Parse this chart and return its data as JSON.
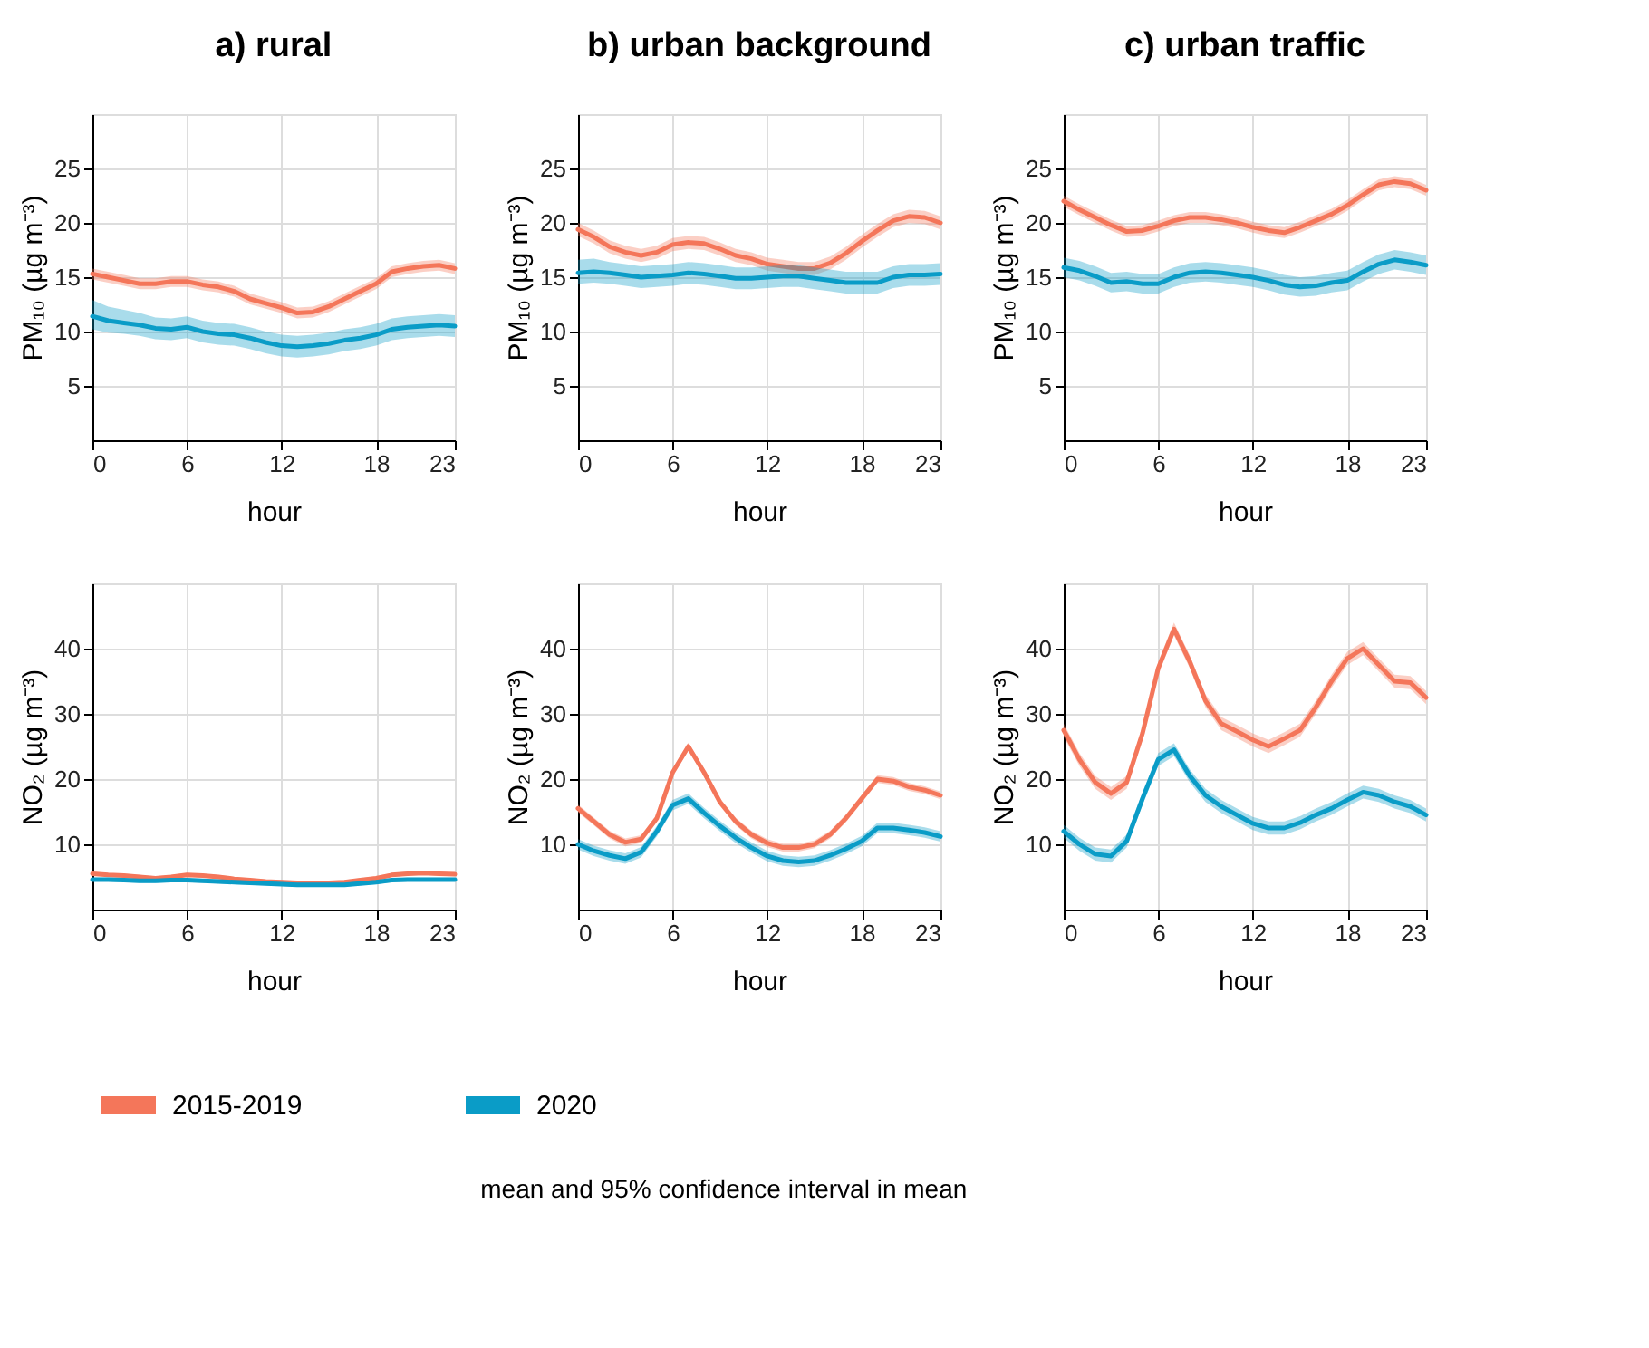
{
  "chart_data": [
    {
      "type": "line",
      "title": "a) rural",
      "legend": "bottom",
      "xlabel": "hour",
      "ylabel": "PM₁₀ (µg m⁻³)",
      "x": [
        0,
        1,
        2,
        3,
        4,
        5,
        6,
        7,
        8,
        9,
        10,
        11,
        12,
        13,
        14,
        15,
        16,
        17,
        18,
        19,
        20,
        21,
        22,
        23
      ],
      "xlim": [
        0,
        23
      ],
      "xticks": [
        0,
        6,
        12,
        18,
        23
      ],
      "ylim": [
        0,
        30
      ],
      "yticks": [
        5,
        10,
        15,
        20,
        25
      ],
      "grid": true,
      "series": [
        {
          "name": "2015-2019",
          "color": "#f4765a",
          "values": [
            15.3,
            15.0,
            14.7,
            14.4,
            14.4,
            14.6,
            14.6,
            14.3,
            14.1,
            13.7,
            13.0,
            12.6,
            12.2,
            11.7,
            11.8,
            12.3,
            13.0,
            13.7,
            14.4,
            15.5,
            15.8,
            16.0,
            16.1,
            15.8
          ],
          "lower": [
            14.8,
            14.5,
            14.2,
            13.9,
            13.9,
            14.1,
            14.1,
            13.8,
            13.6,
            13.2,
            12.5,
            12.1,
            11.7,
            11.2,
            11.3,
            11.8,
            12.5,
            13.2,
            13.9,
            15.0,
            15.3,
            15.5,
            15.6,
            15.3
          ],
          "upper": [
            15.8,
            15.5,
            15.2,
            14.9,
            14.9,
            15.1,
            15.1,
            14.8,
            14.6,
            14.2,
            13.5,
            13.1,
            12.7,
            12.2,
            12.3,
            12.8,
            13.5,
            14.2,
            14.9,
            16.0,
            16.3,
            16.5,
            16.6,
            16.3
          ]
        },
        {
          "name": "2020",
          "color": "#0a9cc7",
          "values": [
            11.4,
            11.0,
            10.8,
            10.6,
            10.3,
            10.2,
            10.4,
            10.0,
            9.8,
            9.7,
            9.4,
            9.0,
            8.7,
            8.6,
            8.7,
            8.9,
            9.2,
            9.4,
            9.7,
            10.2,
            10.4,
            10.5,
            10.6,
            10.5
          ],
          "lower": [
            10.2,
            9.9,
            9.8,
            9.6,
            9.3,
            9.2,
            9.4,
            9.0,
            8.8,
            8.7,
            8.4,
            8.0,
            7.7,
            7.6,
            7.7,
            7.9,
            8.2,
            8.4,
            8.7,
            9.2,
            9.4,
            9.5,
            9.6,
            9.5
          ],
          "upper": [
            12.9,
            12.3,
            12.0,
            11.7,
            11.3,
            11.2,
            11.4,
            11.0,
            10.8,
            10.7,
            10.4,
            10.0,
            9.7,
            9.6,
            9.7,
            9.9,
            10.2,
            10.4,
            10.7,
            11.2,
            11.4,
            11.5,
            11.6,
            11.5
          ]
        }
      ]
    },
    {
      "type": "line",
      "title": "b) urban background",
      "xlabel": "hour",
      "ylabel": "PM₁₀ (µg m⁻³)",
      "x": [
        0,
        1,
        2,
        3,
        4,
        5,
        6,
        7,
        8,
        9,
        10,
        11,
        12,
        13,
        14,
        15,
        16,
        17,
        18,
        19,
        20,
        21,
        22,
        23
      ],
      "xlim": [
        0,
        23
      ],
      "xticks": [
        0,
        6,
        12,
        18,
        23
      ],
      "ylim": [
        0,
        30
      ],
      "yticks": [
        5,
        10,
        15,
        20,
        25
      ],
      "grid": true,
      "series": [
        {
          "name": "2015-2019",
          "color": "#f4765a",
          "values": [
            19.4,
            18.7,
            17.8,
            17.3,
            17.0,
            17.3,
            18.0,
            18.2,
            18.1,
            17.6,
            17.0,
            16.7,
            16.2,
            16.0,
            15.8,
            15.8,
            16.3,
            17.2,
            18.3,
            19.3,
            20.2,
            20.6,
            20.5,
            20.0
          ],
          "lower": [
            18.8,
            18.1,
            17.2,
            16.7,
            16.4,
            16.7,
            17.4,
            17.6,
            17.5,
            17.0,
            16.4,
            16.1,
            15.6,
            15.4,
            15.2,
            15.2,
            15.7,
            16.6,
            17.7,
            18.7,
            19.6,
            20.0,
            19.9,
            19.4
          ],
          "upper": [
            20.0,
            19.3,
            18.4,
            17.9,
            17.6,
            17.9,
            18.6,
            18.8,
            18.7,
            18.2,
            17.6,
            17.3,
            16.8,
            16.6,
            16.4,
            16.4,
            16.9,
            17.8,
            18.9,
            19.9,
            20.8,
            21.2,
            21.1,
            20.6
          ]
        },
        {
          "name": "2020",
          "color": "#0a9cc7",
          "values": [
            15.4,
            15.5,
            15.4,
            15.2,
            15.0,
            15.1,
            15.2,
            15.4,
            15.3,
            15.1,
            14.9,
            14.9,
            15.0,
            15.1,
            15.1,
            14.9,
            14.7,
            14.5,
            14.5,
            14.5,
            15.0,
            15.2,
            15.2,
            15.3
          ],
          "lower": [
            14.4,
            14.5,
            14.4,
            14.2,
            14.0,
            14.1,
            14.2,
            14.4,
            14.3,
            14.1,
            13.9,
            13.9,
            14.0,
            14.1,
            14.1,
            13.9,
            13.7,
            13.5,
            13.5,
            13.5,
            14.0,
            14.2,
            14.2,
            14.3
          ],
          "upper": [
            16.6,
            16.7,
            16.4,
            16.2,
            16.0,
            16.1,
            16.2,
            16.4,
            16.3,
            16.1,
            15.9,
            15.9,
            16.0,
            16.1,
            16.1,
            15.9,
            15.7,
            15.5,
            15.5,
            15.5,
            16.0,
            16.2,
            16.2,
            16.3
          ]
        }
      ]
    },
    {
      "type": "line",
      "title": "c) urban traffic",
      "xlabel": "hour",
      "ylabel": "PM₁₀ (µg m⁻³)",
      "x": [
        0,
        1,
        2,
        3,
        4,
        5,
        6,
        7,
        8,
        9,
        10,
        11,
        12,
        13,
        14,
        15,
        16,
        17,
        18,
        19,
        20,
        21,
        22,
        23
      ],
      "xlim": [
        0,
        23
      ],
      "xticks": [
        0,
        6,
        12,
        18,
        23
      ],
      "ylim": [
        0,
        30
      ],
      "yticks": [
        5,
        10,
        15,
        20,
        25
      ],
      "grid": true,
      "series": [
        {
          "name": "2015-2019",
          "color": "#f4765a",
          "values": [
            22.0,
            21.2,
            20.5,
            19.8,
            19.2,
            19.3,
            19.7,
            20.2,
            20.5,
            20.5,
            20.3,
            20.0,
            19.6,
            19.3,
            19.1,
            19.6,
            20.2,
            20.8,
            21.6,
            22.6,
            23.5,
            23.8,
            23.6,
            23.0
          ],
          "lower": [
            21.5,
            20.7,
            20.0,
            19.3,
            18.7,
            18.8,
            19.2,
            19.7,
            20.0,
            20.0,
            19.8,
            19.5,
            19.1,
            18.8,
            18.6,
            19.1,
            19.7,
            20.3,
            21.1,
            22.1,
            23.0,
            23.3,
            23.1,
            22.5
          ],
          "upper": [
            22.5,
            21.7,
            21.0,
            20.3,
            19.7,
            19.8,
            20.2,
            20.7,
            21.0,
            21.0,
            20.8,
            20.5,
            20.1,
            19.8,
            19.6,
            20.1,
            20.7,
            21.3,
            22.1,
            23.1,
            24.0,
            24.3,
            24.1,
            23.5
          ]
        },
        {
          "name": "2020",
          "color": "#0a9cc7",
          "values": [
            15.9,
            15.6,
            15.1,
            14.5,
            14.6,
            14.4,
            14.4,
            15.0,
            15.4,
            15.5,
            15.4,
            15.2,
            15.0,
            14.7,
            14.3,
            14.1,
            14.2,
            14.5,
            14.7,
            15.5,
            16.2,
            16.6,
            16.4,
            16.1
          ],
          "lower": [
            15.0,
            14.7,
            14.2,
            13.6,
            13.7,
            13.5,
            13.5,
            14.1,
            14.5,
            14.6,
            14.5,
            14.3,
            14.1,
            13.8,
            13.4,
            13.2,
            13.3,
            13.6,
            13.8,
            14.6,
            15.3,
            15.7,
            15.5,
            15.2
          ],
          "upper": [
            16.8,
            16.5,
            16.0,
            15.4,
            15.5,
            15.3,
            15.3,
            15.9,
            16.3,
            16.4,
            16.3,
            16.1,
            15.9,
            15.6,
            15.2,
            15.0,
            15.1,
            15.4,
            15.6,
            16.4,
            17.1,
            17.5,
            17.3,
            17.0
          ]
        }
      ]
    },
    {
      "type": "line",
      "xlabel": "hour",
      "ylabel": "NO₂ (µg m⁻³)",
      "x": [
        0,
        1,
        2,
        3,
        4,
        5,
        6,
        7,
        8,
        9,
        10,
        11,
        12,
        13,
        14,
        15,
        16,
        17,
        18,
        19,
        20,
        21,
        22,
        23
      ],
      "xlim": [
        0,
        23
      ],
      "xticks": [
        0,
        6,
        12,
        18,
        23
      ],
      "ylim": [
        0,
        50
      ],
      "yticks": [
        10,
        20,
        30,
        40
      ],
      "grid": true,
      "series": [
        {
          "name": "2015-2019",
          "color": "#f4765a",
          "values": [
            5.5,
            5.3,
            5.2,
            5.0,
            4.8,
            5.0,
            5.3,
            5.2,
            5.0,
            4.7,
            4.5,
            4.3,
            4.2,
            4.1,
            4.1,
            4.1,
            4.2,
            4.5,
            4.8,
            5.3,
            5.5,
            5.6,
            5.5,
            5.4
          ],
          "lower": [
            5.2,
            5.0,
            4.9,
            4.7,
            4.5,
            4.7,
            5.0,
            4.9,
            4.7,
            4.4,
            4.2,
            4.0,
            3.9,
            3.8,
            3.8,
            3.8,
            3.9,
            4.2,
            4.5,
            5.0,
            5.2,
            5.3,
            5.2,
            5.1
          ],
          "upper": [
            5.8,
            5.6,
            5.5,
            5.3,
            5.1,
            5.3,
            5.6,
            5.5,
            5.3,
            5.0,
            4.8,
            4.6,
            4.5,
            4.4,
            4.4,
            4.4,
            4.5,
            4.8,
            5.1,
            5.6,
            5.8,
            5.9,
            5.8,
            5.7
          ]
        },
        {
          "name": "2020",
          "color": "#0a9cc7",
          "values": [
            4.6,
            4.6,
            4.5,
            4.4,
            4.4,
            4.5,
            4.5,
            4.4,
            4.3,
            4.2,
            4.1,
            4.0,
            3.9,
            3.8,
            3.8,
            3.8,
            3.8,
            4.0,
            4.2,
            4.5,
            4.6,
            4.6,
            4.6,
            4.6
          ],
          "lower": [
            4.3,
            4.3,
            4.2,
            4.1,
            4.1,
            4.2,
            4.2,
            4.1,
            4.0,
            3.9,
            3.8,
            3.7,
            3.6,
            3.5,
            3.5,
            3.5,
            3.5,
            3.7,
            3.9,
            4.2,
            4.3,
            4.3,
            4.3,
            4.3
          ],
          "upper": [
            4.9,
            4.9,
            4.8,
            4.7,
            4.7,
            4.8,
            4.8,
            4.7,
            4.6,
            4.5,
            4.4,
            4.3,
            4.2,
            4.1,
            4.1,
            4.1,
            4.1,
            4.3,
            4.5,
            4.8,
            4.9,
            4.9,
            4.9,
            4.9
          ]
        }
      ]
    },
    {
      "type": "line",
      "xlabel": "hour",
      "ylabel": "NO₂ (µg m⁻³)",
      "x": [
        0,
        1,
        2,
        3,
        4,
        5,
        6,
        7,
        8,
        9,
        10,
        11,
        12,
        13,
        14,
        15,
        16,
        17,
        18,
        19,
        20,
        21,
        22,
        23
      ],
      "xlim": [
        0,
        23
      ],
      "xticks": [
        0,
        6,
        12,
        18,
        23
      ],
      "ylim": [
        0,
        50
      ],
      "yticks": [
        10,
        20,
        30,
        40
      ],
      "grid": true,
      "series": [
        {
          "name": "2015-2019",
          "color": "#f4765a",
          "values": [
            15.5,
            13.5,
            11.5,
            10.3,
            10.8,
            14.0,
            21.0,
            25.0,
            21.0,
            16.5,
            13.5,
            11.5,
            10.2,
            9.5,
            9.5,
            10.0,
            11.5,
            14.0,
            17.0,
            20.0,
            19.7,
            18.8,
            18.3,
            17.5
          ],
          "lower": [
            14.9,
            12.9,
            10.9,
            9.7,
            10.2,
            13.4,
            20.4,
            24.4,
            20.4,
            15.9,
            12.9,
            10.9,
            9.6,
            8.9,
            8.9,
            9.4,
            10.9,
            13.4,
            16.4,
            19.4,
            19.1,
            18.2,
            17.7,
            16.9
          ],
          "upper": [
            16.1,
            14.1,
            12.1,
            10.9,
            11.4,
            14.6,
            21.6,
            25.6,
            21.6,
            17.1,
            14.1,
            12.1,
            10.8,
            10.1,
            10.1,
            10.6,
            12.1,
            14.6,
            17.6,
            20.6,
            20.3,
            19.4,
            18.9,
            18.1
          ]
        },
        {
          "name": "2020",
          "color": "#0a9cc7",
          "values": [
            10.0,
            9.0,
            8.3,
            7.8,
            8.8,
            12.0,
            16.0,
            17.0,
            14.8,
            12.8,
            11.0,
            9.5,
            8.2,
            7.5,
            7.3,
            7.5,
            8.3,
            9.3,
            10.5,
            12.5,
            12.5,
            12.2,
            11.8,
            11.2
          ],
          "lower": [
            9.2,
            8.2,
            7.5,
            7.0,
            8.0,
            11.2,
            15.2,
            16.2,
            14.0,
            12.0,
            10.2,
            8.7,
            7.4,
            6.7,
            6.5,
            6.7,
            7.5,
            8.5,
            9.7,
            11.7,
            11.7,
            11.4,
            11.0,
            10.4
          ],
          "upper": [
            10.8,
            9.8,
            9.1,
            8.6,
            9.6,
            12.8,
            16.8,
            17.8,
            15.6,
            13.6,
            11.8,
            10.3,
            9.0,
            8.3,
            8.1,
            8.3,
            9.1,
            10.1,
            11.3,
            13.3,
            13.3,
            13.0,
            12.6,
            12.0
          ]
        }
      ]
    },
    {
      "type": "line",
      "xlabel": "hour",
      "ylabel": "NO₂ (µg m⁻³)",
      "x": [
        0,
        1,
        2,
        3,
        4,
        5,
        6,
        7,
        8,
        9,
        10,
        11,
        12,
        13,
        14,
        15,
        16,
        17,
        18,
        19,
        20,
        21,
        22,
        23
      ],
      "xlim": [
        0,
        23
      ],
      "xticks": [
        0,
        6,
        12,
        18,
        23
      ],
      "ylim": [
        0,
        50
      ],
      "yticks": [
        10,
        20,
        30,
        40
      ],
      "grid": true,
      "legend": "bottom",
      "annotations": [
        "mean and 95% confidence interval in mean"
      ],
      "series": [
        {
          "name": "2015-2019",
          "color": "#f4765a",
          "values": [
            27.5,
            23.0,
            19.5,
            17.8,
            19.5,
            27.0,
            37.0,
            43.0,
            38.0,
            32.0,
            28.5,
            27.3,
            26.0,
            25.0,
            26.2,
            27.5,
            31.0,
            35.0,
            38.5,
            40.0,
            37.5,
            35.0,
            34.8,
            32.5
          ],
          "lower": [
            26.5,
            22.0,
            18.5,
            16.8,
            18.5,
            26.0,
            36.0,
            42.0,
            37.0,
            31.0,
            27.5,
            26.3,
            25.0,
            24.0,
            25.2,
            26.5,
            30.0,
            34.0,
            37.5,
            39.0,
            36.5,
            34.0,
            33.8,
            31.5
          ],
          "upper": [
            28.5,
            24.0,
            20.5,
            18.8,
            20.5,
            28.0,
            38.0,
            44.0,
            39.0,
            33.0,
            29.5,
            28.3,
            27.0,
            26.0,
            27.2,
            28.5,
            32.0,
            36.0,
            39.5,
            41.0,
            38.5,
            36.0,
            35.8,
            33.5
          ]
        },
        {
          "name": "2020",
          "color": "#0a9cc7",
          "values": [
            12.0,
            10.0,
            8.5,
            8.2,
            10.5,
            17.0,
            23.0,
            24.5,
            20.5,
            17.5,
            15.8,
            14.5,
            13.2,
            12.5,
            12.5,
            13.3,
            14.5,
            15.5,
            16.8,
            18.0,
            17.5,
            16.5,
            15.8,
            14.5
          ],
          "lower": [
            11.0,
            9.0,
            7.5,
            7.2,
            9.5,
            16.0,
            22.0,
            23.5,
            19.5,
            16.5,
            14.8,
            13.5,
            12.2,
            11.5,
            11.5,
            12.3,
            13.5,
            14.5,
            15.8,
            17.0,
            16.5,
            15.5,
            14.8,
            13.5
          ],
          "upper": [
            13.0,
            11.0,
            9.5,
            9.2,
            11.5,
            18.0,
            24.0,
            25.5,
            21.5,
            18.5,
            16.8,
            15.5,
            14.2,
            13.5,
            13.5,
            14.3,
            15.5,
            16.5,
            17.8,
            19.0,
            18.5,
            17.5,
            16.8,
            15.5
          ]
        }
      ]
    }
  ]
}
